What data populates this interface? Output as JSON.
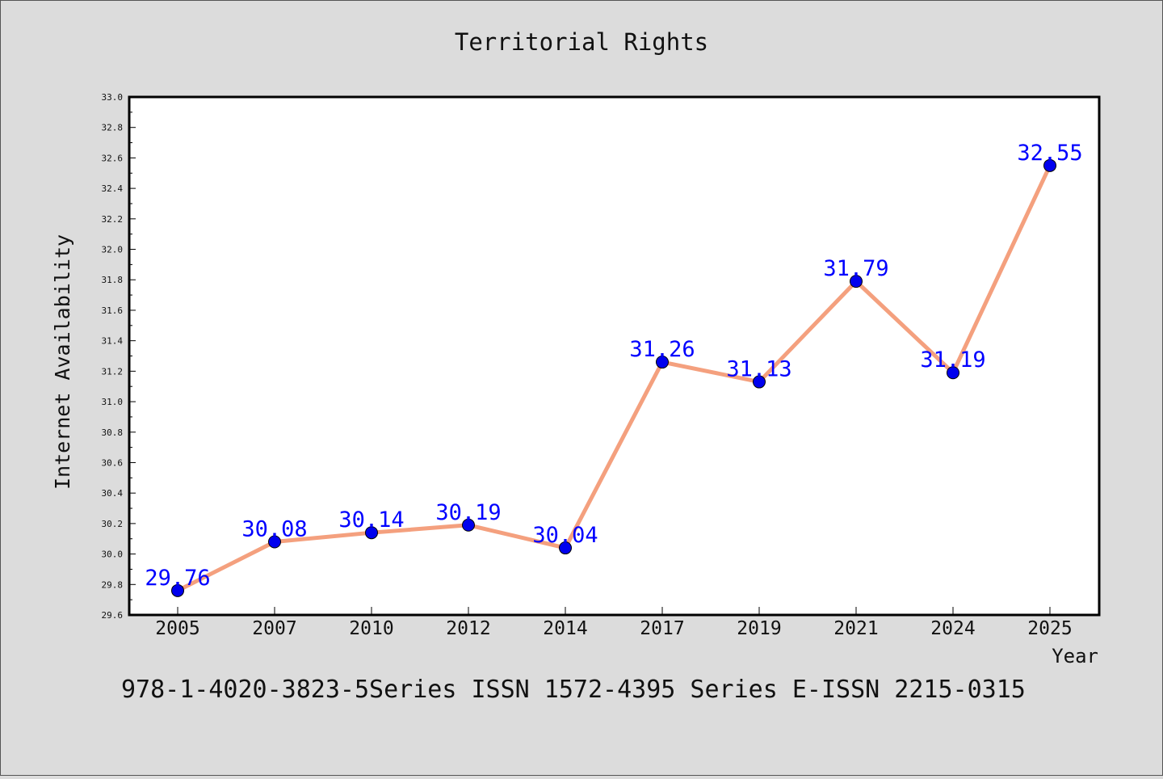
{
  "chart_data": {
    "type": "line",
    "title": "Territorial Rights",
    "xlabel": "Year",
    "ylabel": "Internet Availability",
    "categories": [
      "2005",
      "2007",
      "2010",
      "2012",
      "2014",
      "2017",
      "2019",
      "2021",
      "2024",
      "2025"
    ],
    "values": [
      29.76,
      30.08,
      30.14,
      30.19,
      30.04,
      31.26,
      31.13,
      31.79,
      31.19,
      32.55
    ],
    "data_labels": [
      "29.76",
      "30.08",
      "30.14",
      "30.19",
      "30.04",
      "31.26",
      "31.13",
      "31.79",
      "31.19",
      "32.55"
    ],
    "ylim": [
      29.6,
      33.0
    ],
    "yticks": [
      "29.6",
      "29.8",
      "30.0",
      "30.2",
      "30.4",
      "30.6",
      "30.8",
      "31.0",
      "31.2",
      "31.4",
      "31.6",
      "31.8",
      "32.0",
      "32.2",
      "32.4",
      "32.6",
      "32.8",
      "33.0"
    ],
    "grid": false,
    "legend": "none",
    "line_color": "#f4a07e",
    "marker_color": "#0000ee",
    "label_color": "#0000ff",
    "background_color": "#dcdcdc",
    "plot_background_color": "#ffffff"
  },
  "footer": {
    "text": "978-1-4020-3823-5Series ISSN 1572-4395 Series E-ISSN 2215-0315"
  }
}
